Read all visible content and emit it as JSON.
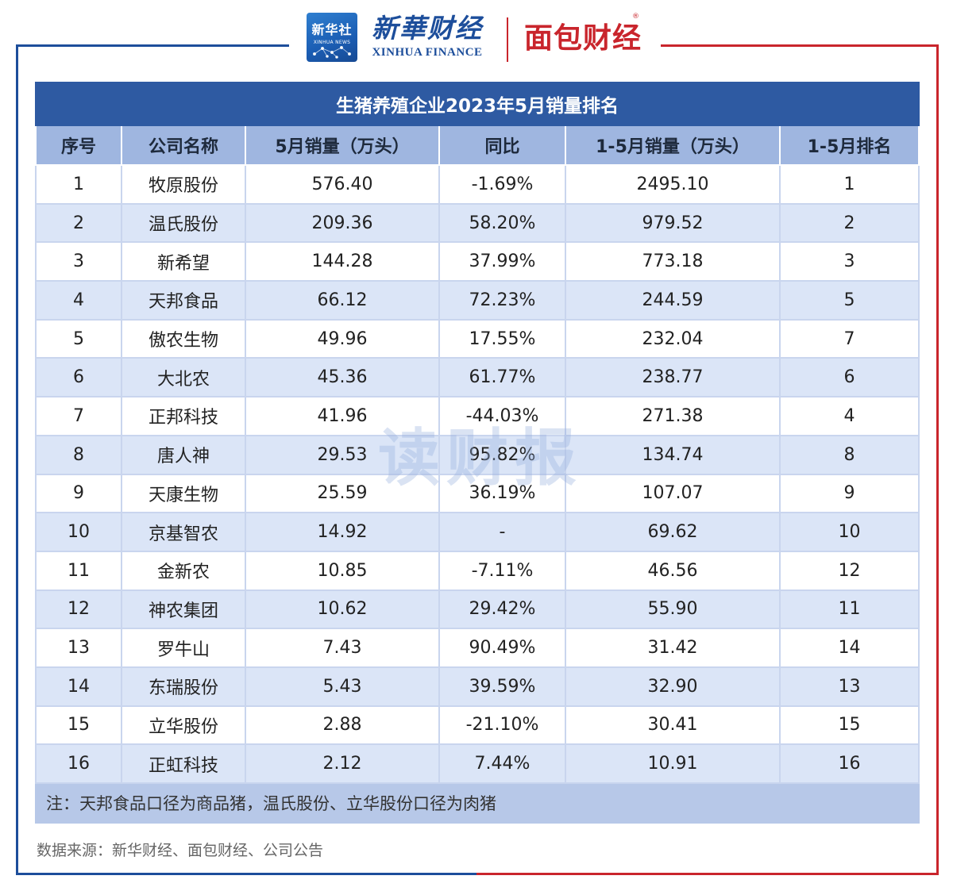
{
  "header": {
    "xinhua_logo_cn": "新华社",
    "xinhua_logo_en": "XINHUA NEWS",
    "xf_logo_cn": "新華财经",
    "xf_logo_en": "XINHUA FINANCE",
    "mbcj_logo": "面包财经",
    "registered_mark": "®",
    "brand_colors": {
      "blue": "#1d4e9b",
      "red": "#c9252c"
    }
  },
  "chart_data": {
    "type": "table",
    "title": "生猪养殖企业2023年5月销量排名",
    "columns": [
      "序号",
      "公司名称",
      "5月销量（万头）",
      "同比",
      "1-5月销量（万头）",
      "1-5月排名"
    ],
    "rows": [
      [
        "1",
        "牧原股份",
        "576.40",
        "-1.69%",
        "2495.10",
        "1"
      ],
      [
        "2",
        "温氏股份",
        "209.36",
        "58.20%",
        "979.52",
        "2"
      ],
      [
        "3",
        "新希望",
        "144.28",
        "37.99%",
        "773.18",
        "3"
      ],
      [
        "4",
        "天邦食品",
        "66.12",
        "72.23%",
        "244.59",
        "5"
      ],
      [
        "5",
        "傲农生物",
        "49.96",
        "17.55%",
        "232.04",
        "7"
      ],
      [
        "6",
        "大北农",
        "45.36",
        "61.77%",
        "238.77",
        "6"
      ],
      [
        "7",
        "正邦科技",
        "41.96",
        "-44.03%",
        "271.38",
        "4"
      ],
      [
        "8",
        "唐人神",
        "29.53",
        "95.82%",
        "134.74",
        "8"
      ],
      [
        "9",
        "天康生物",
        "25.59",
        "36.19%",
        "107.07",
        "9"
      ],
      [
        "10",
        "京基智农",
        "14.92",
        "-",
        "69.62",
        "10"
      ],
      [
        "11",
        "金新农",
        "10.85",
        "-7.11%",
        "46.56",
        "12"
      ],
      [
        "12",
        "神农集团",
        "10.62",
        "29.42%",
        "55.90",
        "11"
      ],
      [
        "13",
        "罗牛山",
        "7.43",
        "90.49%",
        "31.42",
        "14"
      ],
      [
        "14",
        "东瑞股份",
        "5.43",
        "39.59%",
        "32.90",
        "13"
      ],
      [
        "15",
        "立华股份",
        "2.88",
        "-21.10%",
        "30.41",
        "15"
      ],
      [
        "16",
        "正虹科技",
        "2.12",
        "7.44%",
        "10.91",
        "16"
      ]
    ],
    "note": "注：天邦食品口径为商品猪，温氏股份、立华股份口径为肉猪"
  },
  "watermark": "读财报",
  "source": "数据来源：新华财经、面包财经、公司公告",
  "colors": {
    "title_bg": "#2e5aa2",
    "header_bg": "#9fb6e0",
    "stripe_bg": "#dbe5f7",
    "note_bg": "#b7c8e8"
  }
}
